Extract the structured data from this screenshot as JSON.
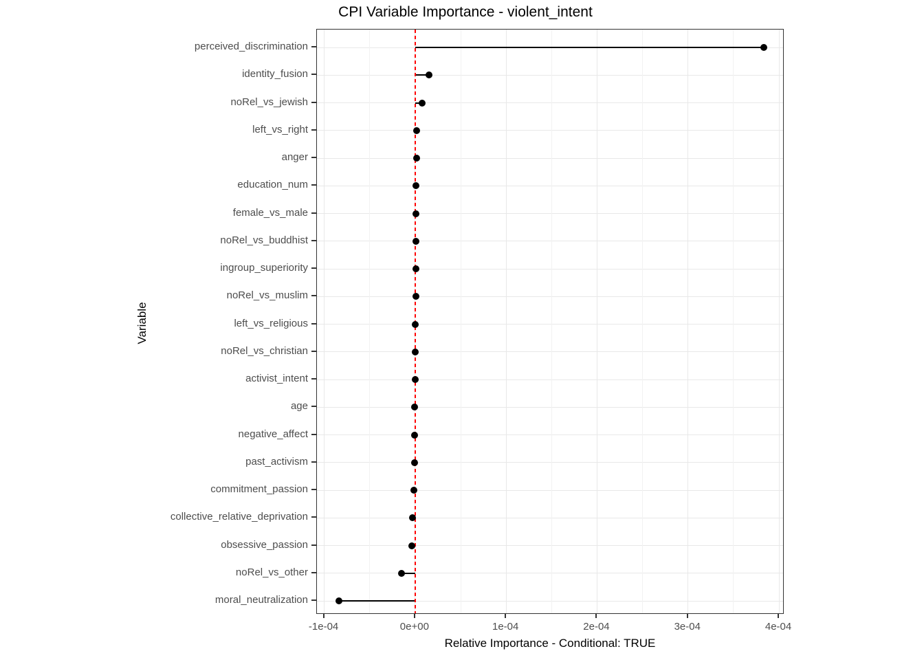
{
  "chart_data": {
    "type": "lollipop",
    "title": "CPI Variable Importance - violent_intent",
    "xlabel": "Relative Importance - Conditional: TRUE",
    "ylabel": "Variable",
    "categories": [
      "perceived_discrimination",
      "identity_fusion",
      "noRel_vs_jewish",
      "left_vs_right",
      "anger",
      "education_num",
      "female_vs_male",
      "noRel_vs_buddhist",
      "ingroup_superiority",
      "noRel_vs_muslim",
      "left_vs_religious",
      "noRel_vs_christian",
      "activist_intent",
      "age",
      "negative_affect",
      "past_activism",
      "commitment_passion",
      "collective_relative_deprivation",
      "obsessive_passion",
      "noRel_vs_other",
      "moral_neutralization"
    ],
    "values": [
      0.000383,
      1.5e-05,
      7.3e-06,
      1.5e-06,
      1.3e-06,
      1.2e-06,
      1e-06,
      9e-07,
      8e-07,
      5e-07,
      3e-07,
      2e-07,
      0.0,
      -5e-07,
      -8e-07,
      -1e-06,
      -1.2e-06,
      -3e-06,
      -3.5e-06,
      -1.5e-05,
      -8.4e-05
    ],
    "xlim": [
      -0.000108,
      0.000406
    ],
    "x_ticks": [
      -0.0001,
      0.0,
      0.0001,
      0.0002,
      0.0003,
      0.0004
    ],
    "x_tick_labels": [
      "-1e-04",
      "0e+00",
      "1e-04",
      "2e-04",
      "3e-04",
      "4e-04"
    ],
    "reference_line": {
      "x": 0.0,
      "color": "#ff0000",
      "style": "dashed"
    },
    "grid": true,
    "legend": "none",
    "point_color": "#000000",
    "stem_color": "#000000"
  }
}
